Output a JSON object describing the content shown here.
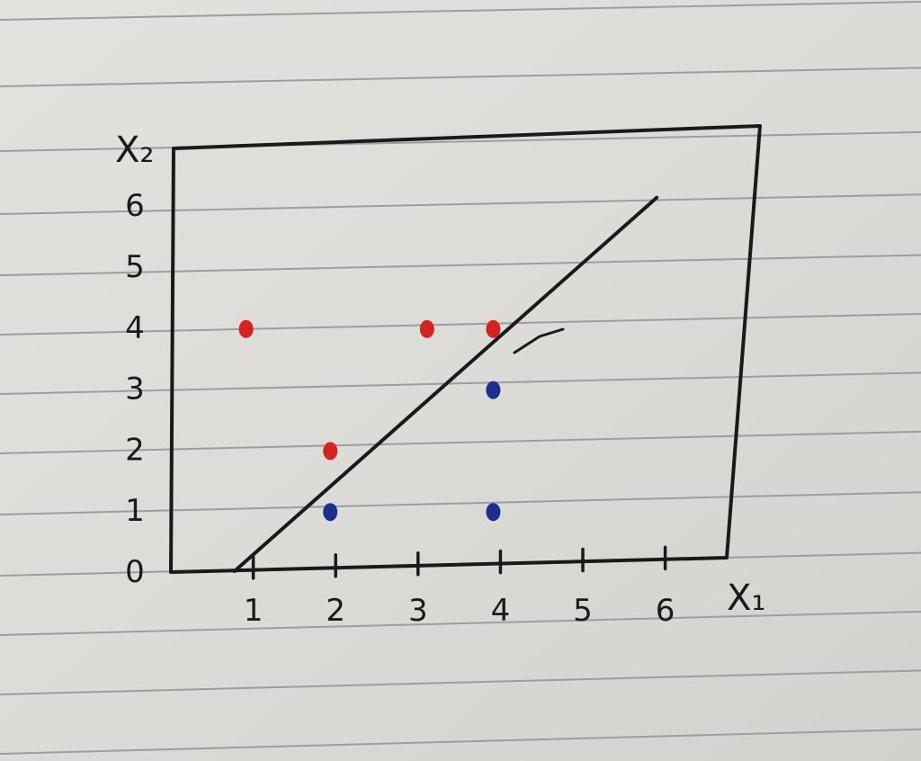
{
  "chart_data": {
    "type": "scatter",
    "xlabel": "X₁",
    "ylabel": "X₂",
    "x_ticks": [
      "1",
      "2",
      "3",
      "4",
      "5",
      "6"
    ],
    "y_ticks": [
      "0",
      "1",
      "2",
      "3",
      "4",
      "5",
      "6"
    ],
    "xlim": [
      0,
      6
    ],
    "ylim": [
      0,
      6
    ],
    "grid": false,
    "series": [
      {
        "color": "#d42323",
        "points": [
          {
            "x": 1,
            "y": 4
          },
          {
            "x": 2,
            "y": 2
          },
          {
            "x": 3,
            "y": 4
          },
          {
            "x": 4,
            "y": 4
          }
        ]
      },
      {
        "color": "#1b2f8f",
        "points": [
          {
            "x": 2,
            "y": 1
          },
          {
            "x": 4,
            "y": 1
          },
          {
            "x": 4,
            "y": 3
          }
        ]
      }
    ],
    "decision_line": {
      "from": {
        "x": 0.75,
        "y": 0
      },
      "to": {
        "x": 6.4,
        "y": 6.2
      },
      "color": "#1a1a1a"
    }
  }
}
